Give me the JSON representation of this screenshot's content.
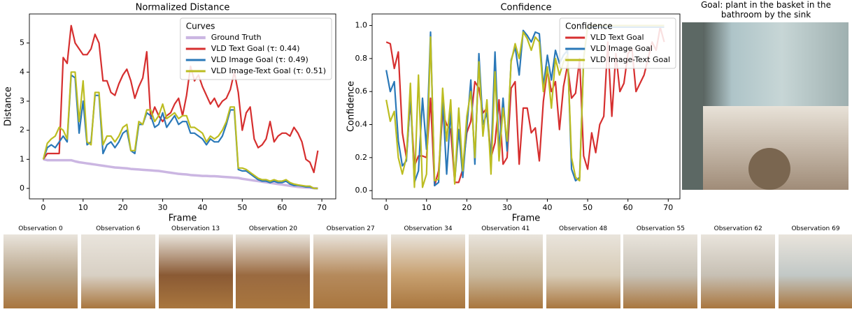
{
  "chart_data": [
    {
      "type": "line",
      "title": "Normalized Distance",
      "xlabel": "Frame",
      "ylabel": "Distance",
      "legend_title": "Curves",
      "legend": "upper right",
      "xlim": [
        -3.5,
        73.5
      ],
      "ylim": [
        -0.36,
        6.0
      ],
      "xticks": [
        0,
        10,
        20,
        30,
        40,
        50,
        60,
        70
      ],
      "yticks": [
        0,
        1,
        2,
        3,
        4,
        5
      ],
      "x": [
        0,
        1,
        2,
        3,
        4,
        5,
        6,
        7,
        8,
        9,
        10,
        11,
        12,
        13,
        14,
        15,
        16,
        17,
        18,
        19,
        20,
        21,
        22,
        23,
        24,
        25,
        26,
        27,
        28,
        29,
        30,
        31,
        32,
        33,
        34,
        35,
        36,
        37,
        38,
        39,
        40,
        41,
        42,
        43,
        44,
        45,
        46,
        47,
        48,
        49,
        50,
        51,
        52,
        53,
        54,
        55,
        56,
        57,
        58,
        59,
        60,
        61,
        62,
        63,
        64,
        65,
        66,
        67,
        68,
        69
      ],
      "series": [
        {
          "name": "Ground Truth",
          "color": "#cbb6e2",
          "width": 3.5,
          "values": [
            1.0,
            0.97,
            0.97,
            0.97,
            0.97,
            0.97,
            0.97,
            0.97,
            0.93,
            0.9,
            0.88,
            0.86,
            0.84,
            0.82,
            0.8,
            0.78,
            0.76,
            0.74,
            0.72,
            0.71,
            0.7,
            0.69,
            0.67,
            0.66,
            0.65,
            0.64,
            0.63,
            0.62,
            0.61,
            0.6,
            0.58,
            0.56,
            0.54,
            0.52,
            0.5,
            0.49,
            0.48,
            0.46,
            0.45,
            0.44,
            0.43,
            0.43,
            0.42,
            0.42,
            0.41,
            0.4,
            0.39,
            0.38,
            0.37,
            0.36,
            0.33,
            0.31,
            0.29,
            0.27,
            0.25,
            0.23,
            0.21,
            0.19,
            0.17,
            0.15,
            0.13,
            0.11,
            0.09,
            0.07,
            0.05,
            0.04,
            0.03,
            0.02,
            0.01,
            0.0
          ]
        },
        {
          "name": "VLD Text Goal (τ: 0.44)",
          "color": "#d62f2f",
          "width": 2.2,
          "values": [
            1.0,
            1.2,
            1.2,
            1.2,
            1.2,
            4.5,
            4.3,
            5.6,
            5.0,
            4.8,
            4.6,
            4.6,
            4.8,
            5.3,
            5.0,
            3.7,
            3.7,
            3.3,
            3.2,
            3.6,
            3.9,
            4.1,
            3.7,
            3.1,
            3.5,
            3.8,
            4.7,
            2.4,
            2.8,
            2.5,
            2.3,
            2.5,
            2.6,
            2.9,
            3.1,
            2.5,
            3.2,
            4.2,
            3.7,
            3.9,
            3.5,
            3.2,
            2.9,
            3.1,
            2.8,
            3.0,
            3.1,
            3.4,
            4.0,
            3.3,
            2.0,
            2.6,
            2.8,
            1.7,
            1.4,
            1.5,
            1.7,
            2.3,
            1.6,
            1.8,
            1.9,
            1.9,
            1.8,
            2.1,
            1.9,
            1.6,
            1.0,
            0.9,
            0.55,
            1.3
          ]
        },
        {
          "name": "VLD Image Goal (τ: 0.49)",
          "color": "#2a78b8",
          "width": 2.2,
          "values": [
            1.0,
            1.4,
            1.5,
            1.4,
            1.6,
            1.8,
            1.6,
            3.9,
            3.8,
            1.9,
            3.0,
            1.5,
            1.6,
            3.2,
            3.2,
            1.2,
            1.5,
            1.6,
            1.4,
            1.6,
            1.9,
            2.0,
            1.3,
            1.2,
            2.2,
            2.2,
            2.6,
            2.5,
            2.1,
            2.2,
            2.6,
            2.1,
            2.3,
            2.5,
            2.2,
            2.3,
            2.3,
            1.9,
            1.9,
            1.8,
            1.7,
            1.5,
            1.7,
            1.6,
            1.6,
            1.8,
            2.2,
            2.7,
            2.7,
            0.65,
            0.6,
            0.6,
            0.5,
            0.4,
            0.3,
            0.25,
            0.25,
            0.2,
            0.25,
            0.2,
            0.2,
            0.25,
            0.15,
            0.1,
            0.1,
            0.08,
            0.05,
            0.05,
            0.0,
            0.0
          ]
        },
        {
          "name": "VLD Image-Text Goal (τ: 0.51)",
          "color": "#bcbd22",
          "width": 2.2,
          "values": [
            1.0,
            1.55,
            1.7,
            1.8,
            2.1,
            2.0,
            1.7,
            4.0,
            4.0,
            2.3,
            3.7,
            1.6,
            1.5,
            3.3,
            3.3,
            1.5,
            1.8,
            1.8,
            1.6,
            1.8,
            2.1,
            2.2,
            1.3,
            1.3,
            2.3,
            2.2,
            2.7,
            2.7,
            2.3,
            2.5,
            2.9,
            2.4,
            2.5,
            2.6,
            2.4,
            2.5,
            2.5,
            2.1,
            2.1,
            2.0,
            1.9,
            1.6,
            1.8,
            1.7,
            1.8,
            2.0,
            2.3,
            2.8,
            2.8,
            0.7,
            0.7,
            0.65,
            0.55,
            0.45,
            0.35,
            0.3,
            0.3,
            0.25,
            0.3,
            0.25,
            0.25,
            0.3,
            0.2,
            0.15,
            0.12,
            0.1,
            0.08,
            0.08,
            0.0,
            0.0
          ]
        }
      ]
    },
    {
      "type": "line",
      "title": "Confidence",
      "xlabel": "Frame",
      "ylabel": "Confidence",
      "legend_title": "Confidence",
      "legend": "upper right",
      "xlim": [
        -3.5,
        72.9
      ],
      "ylim": [
        -0.05,
        1.07
      ],
      "xticks": [
        0,
        10,
        20,
        30,
        40,
        50,
        60,
        70
      ],
      "yticks": [
        {
          "value": 0,
          "label": "0.0"
        },
        0.2,
        0.4,
        0.6,
        0.8,
        {
          "value": 1,
          "label": "1.0"
        }
      ],
      "x": [
        0,
        1,
        2,
        3,
        4,
        5,
        6,
        7,
        8,
        9,
        10,
        11,
        12,
        13,
        14,
        15,
        16,
        17,
        18,
        19,
        20,
        21,
        22,
        23,
        24,
        25,
        26,
        27,
        28,
        29,
        30,
        31,
        32,
        33,
        34,
        35,
        36,
        37,
        38,
        39,
        40,
        41,
        42,
        43,
        44,
        45,
        46,
        47,
        48,
        49,
        50,
        51,
        52,
        53,
        54,
        55,
        56,
        57,
        58,
        59,
        60,
        61,
        62,
        63,
        64,
        65,
        66,
        67,
        68,
        69
      ],
      "series": [
        {
          "name": "VLD Text Goal",
          "color": "#d62f2f",
          "width": 2.2,
          "values": [
            0.9,
            0.89,
            0.74,
            0.84,
            0.35,
            0.2,
            0.55,
            0.15,
            0.21,
            0.21,
            0.2,
            0.56,
            0.03,
            0.12,
            0.47,
            0.4,
            0.37,
            0.05,
            0.05,
            0.13,
            0.35,
            0.42,
            0.66,
            0.62,
            0.47,
            0.5,
            0.2,
            0.29,
            0.55,
            0.16,
            0.2,
            0.62,
            0.66,
            0.16,
            0.5,
            0.5,
            0.35,
            0.38,
            0.18,
            0.54,
            0.73,
            0.6,
            0.66,
            0.37,
            0.63,
            0.76,
            0.56,
            0.59,
            0.8,
            0.21,
            0.13,
            0.35,
            0.23,
            0.4,
            0.45,
            0.9,
            0.45,
            0.83,
            0.6,
            0.65,
            0.83,
            0.86,
            0.6,
            0.65,
            0.7,
            0.8,
            0.9,
            0.85,
            0.99,
            0.9
          ]
        },
        {
          "name": "VLD Image Goal",
          "color": "#2a78b8",
          "width": 2.2,
          "values": [
            0.73,
            0.6,
            0.66,
            0.3,
            0.15,
            0.18,
            0.58,
            0.05,
            0.12,
            0.56,
            0.25,
            0.96,
            0.03,
            0.05,
            0.56,
            0.1,
            0.48,
            0.06,
            0.37,
            0.08,
            0.38,
            0.67,
            0.16,
            0.83,
            0.4,
            0.47,
            0.18,
            0.84,
            0.24,
            0.56,
            0.24,
            0.79,
            0.87,
            0.7,
            0.97,
            0.94,
            0.9,
            0.96,
            0.95,
            0.63,
            0.82,
            0.67,
            0.85,
            0.77,
            0.82,
            0.85,
            0.13,
            0.06,
            0.08,
            0.8,
            0.99,
            0.99,
            0.99,
            0.99,
            0.99,
            0.99,
            0.99,
            0.99,
            0.99,
            0.99,
            0.99,
            0.99,
            0.99,
            0.99,
            0.99,
            0.99,
            0.99,
            0.99,
            0.99,
            0.99
          ]
        },
        {
          "name": "VLD Image-Text Goal",
          "color": "#bcbd22",
          "width": 2.2,
          "values": [
            0.55,
            0.42,
            0.48,
            0.2,
            0.1,
            0.2,
            0.65,
            0.02,
            0.7,
            0.02,
            0.1,
            0.93,
            0.06,
            0.07,
            0.62,
            0.3,
            0.55,
            0.04,
            0.5,
            0.12,
            0.45,
            0.6,
            0.2,
            0.78,
            0.33,
            0.55,
            0.1,
            0.72,
            0.18,
            0.5,
            0.3,
            0.78,
            0.89,
            0.8,
            0.96,
            0.92,
            0.85,
            0.93,
            0.9,
            0.6,
            0.75,
            0.5,
            0.8,
            0.7,
            0.78,
            0.82,
            0.2,
            0.08,
            0.06,
            0.8,
            1.0,
            1.0,
            1.0,
            1.0,
            1.0,
            1.0,
            1.0,
            1.0,
            1.0,
            1.0,
            1.0,
            1.0,
            1.0,
            1.0,
            1.0,
            1.0,
            1.0,
            1.0,
            1.0,
            1.0
          ]
        }
      ]
    }
  ],
  "goal": {
    "title": "Goal: plant in the basket in the bathroom by the sink"
  },
  "observations": [
    "Observation 0",
    "Observation 6",
    "Observation 13",
    "Observation 20",
    "Observation 27",
    "Observation 34",
    "Observation 41",
    "Observation 48",
    "Observation 55",
    "Observation 62",
    "Observation 69"
  ]
}
